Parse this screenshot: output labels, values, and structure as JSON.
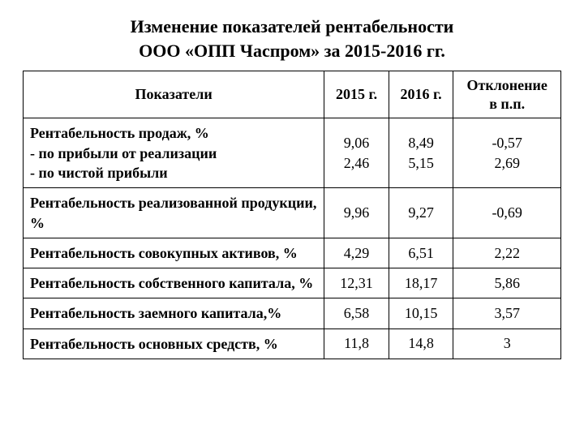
{
  "title_line1": "Изменение показателей рентабельности",
  "title_line2": "ООО «ОПП Часпром» за 2015-2016 гг.",
  "table": {
    "columns": [
      "Показатели",
      "2015 г.",
      "2016 г."
    ],
    "dev_header_line1": "Отклонение",
    "dev_header_line2": "в п.п.",
    "col_widths_pct": [
      56,
      12,
      12,
      20
    ],
    "border_color": "#000000",
    "background_color": "#ffffff",
    "header_fontsize": 18,
    "body_fontsize": 18,
    "font_family": "Times New Roman",
    "rows": [
      {
        "indicator_main": "Рентабельность продаж, %",
        "indicator_sub1": "- по прибыли от реализации",
        "indicator_sub2": "- по чистой прибыли",
        "y2015_a": "9,06",
        "y2015_b": "2,46",
        "y2016_a": "8,49",
        "y2016_b": "5,15",
        "dev_a": "-0,57",
        "dev_b": "2,69",
        "multi": true
      },
      {
        "indicator_main": "Рентабельность реализованной продукции, %",
        "y2015": "9,96",
        "y2016": "9,27",
        "dev": "-0,69"
      },
      {
        "indicator_main": "Рентабельность совокупных активов, %",
        "y2015": "4,29",
        "y2016": "6,51",
        "dev": "2,22"
      },
      {
        "indicator_main": "Рентабельность собственного капитала, %",
        "y2015": "12,31",
        "y2016": "18,17",
        "dev": "5,86"
      },
      {
        "indicator_main": "Рентабельность заемного капитала,%",
        "y2015": "6,58",
        "y2016": "10,15",
        "dev": "3,57"
      },
      {
        "indicator_main": "Рентабельность основных средств, %",
        "y2015": "11,8",
        "y2016": "14,8",
        "dev": "3"
      }
    ]
  }
}
